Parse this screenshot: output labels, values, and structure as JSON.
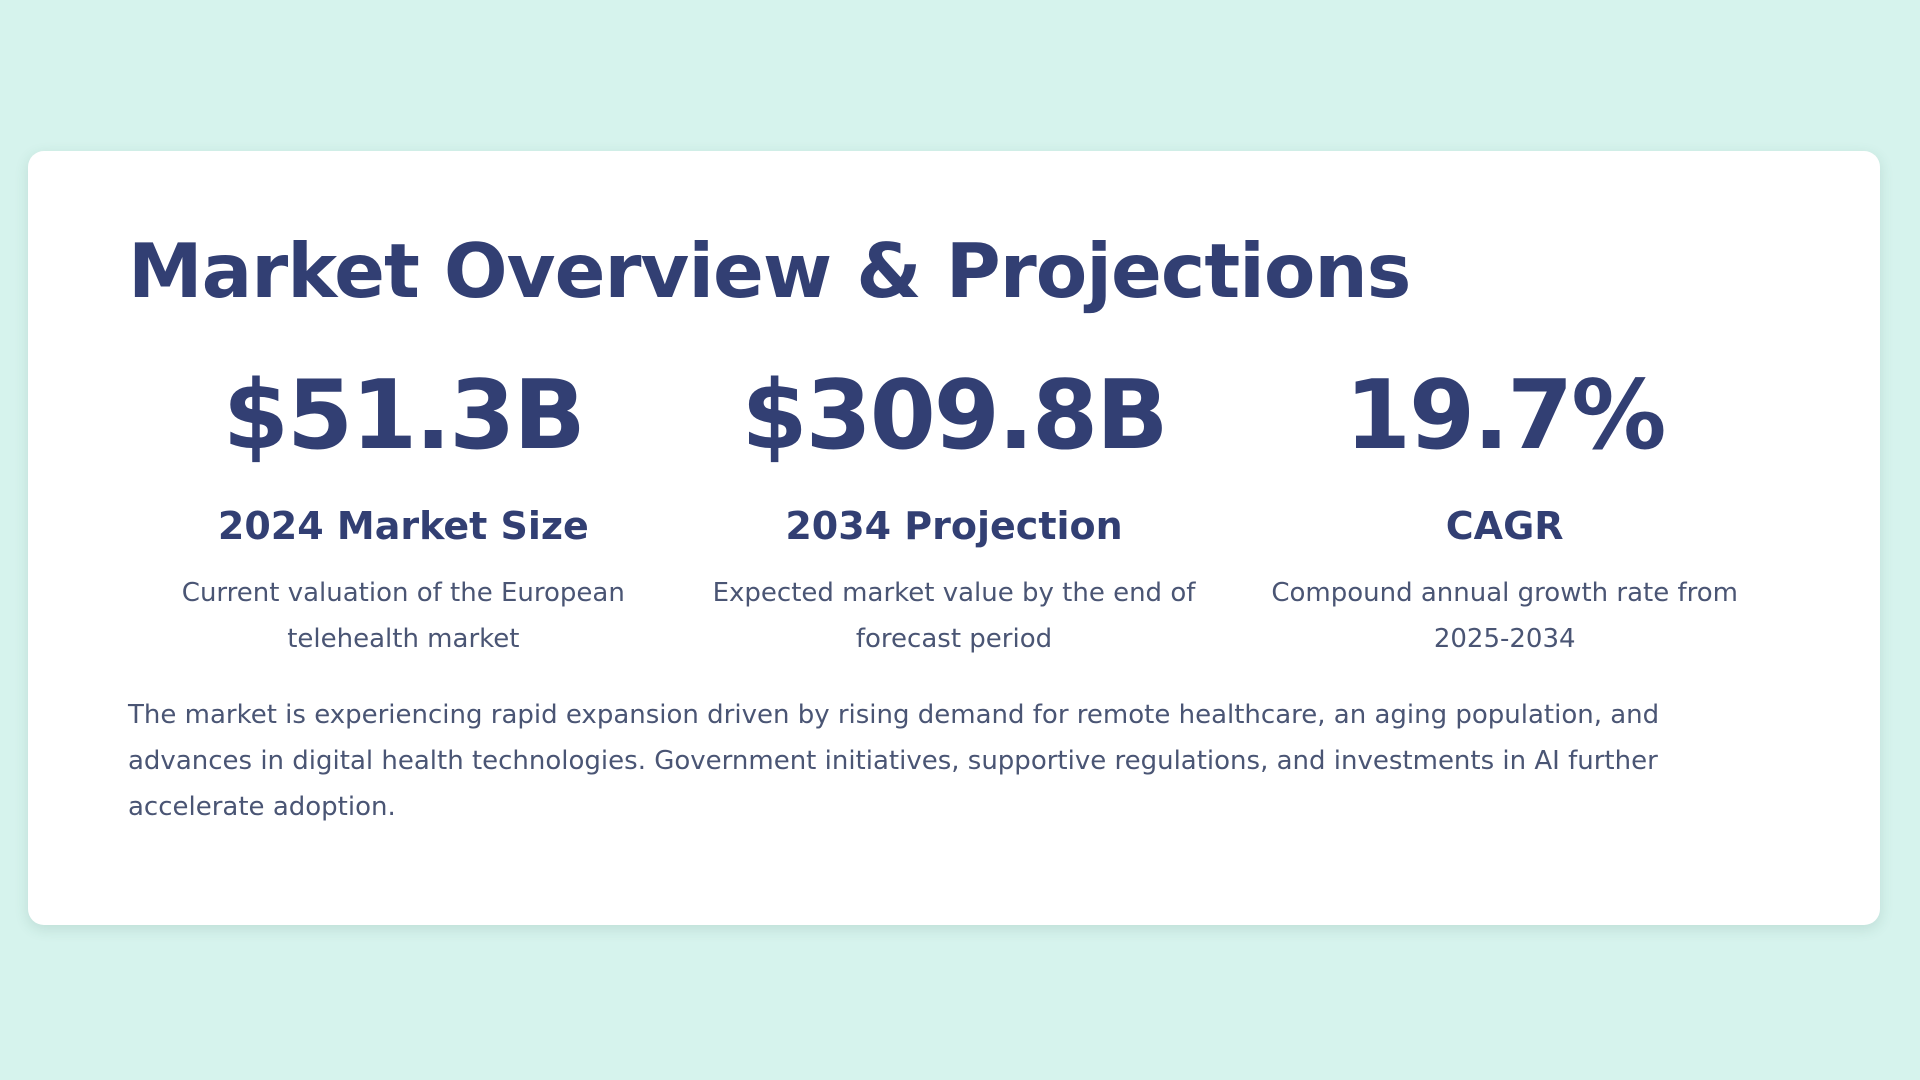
{
  "card": {
    "title": "Market Overview & Projections",
    "stats": [
      {
        "value": "$51.3B",
        "label": "2024 Market Size",
        "description": "Current valuation of the European telehealth market"
      },
      {
        "value": "$309.8B",
        "label": "2034 Projection",
        "description": "Expected market value by the end of forecast period"
      },
      {
        "value": "19.7%",
        "label": "CAGR",
        "description": "Compound annual growth rate from 2025-2034"
      }
    ],
    "summary": "The market is experiencing rapid expansion driven by rising demand for remote healthcare, an aging population, and advances in digital health technologies. Government initiatives, supportive regulations, and investments in AI further accelerate adoption."
  },
  "colors": {
    "background": "#d6f3ed",
    "card": "#ffffff",
    "heading": "#323f73",
    "body_text": "#4a5574"
  }
}
